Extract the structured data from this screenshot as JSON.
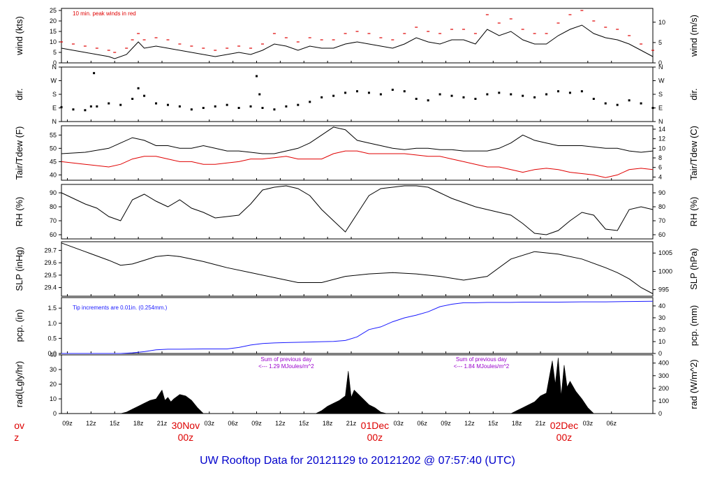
{
  "colors": {
    "black": "#000000",
    "red": "#e00000",
    "blue": "#1a1aff",
    "purple": "#9900cc",
    "title": "#0000cc",
    "day_label": "#dd0000"
  },
  "title": "UW Rooftop Data for 20121129  to  20121202 @ 07:57:40  (UTC)",
  "chart_data": [
    {
      "type": "line",
      "id": "wind",
      "ylabel_left": "wind (kts)",
      "ylabel_right": "wind (m/s)",
      "ylim": [
        0,
        26
      ],
      "yticks_left": [
        0,
        5,
        10,
        15,
        20,
        25
      ],
      "ylim_right": [
        0,
        13.4
      ],
      "yticks_right": [
        0,
        5,
        10
      ],
      "annotation": "10 min. peak winds in red",
      "series": [
        {
          "name": "",
          "color": "black",
          "x": [
            0,
            2,
            4,
            6,
            8,
            9,
            11,
            12,
            13,
            14,
            16,
            18,
            20,
            22,
            24,
            26,
            28,
            30,
            32,
            34,
            36,
            38,
            40,
            42,
            44,
            46,
            48,
            50,
            52,
            54,
            56,
            58,
            60,
            62,
            64,
            66,
            68,
            70,
            72,
            74,
            76,
            78,
            80,
            82,
            84,
            86,
            88,
            90,
            92,
            94,
            96,
            98,
            100
          ],
          "values": [
            7,
            6,
            5,
            4,
            3,
            2,
            4,
            7,
            10,
            7,
            8,
            7,
            6,
            5,
            4,
            3,
            4,
            5,
            4,
            6,
            9,
            8,
            6,
            8,
            7,
            7,
            9,
            10,
            9,
            8,
            7,
            9,
            12,
            10,
            9,
            11,
            11,
            9,
            16,
            13,
            15,
            11,
            9,
            9,
            13,
            16,
            18,
            14,
            12,
            11,
            9,
            6,
            3
          ]
        },
        {
          "name": "",
          "color": "red",
          "marker": "dash",
          "x": [
            0,
            2,
            4,
            6,
            8,
            9,
            11,
            12,
            13,
            14,
            16,
            18,
            20,
            22,
            24,
            26,
            28,
            30,
            32,
            34,
            36,
            38,
            40,
            42,
            44,
            46,
            48,
            50,
            52,
            54,
            56,
            58,
            60,
            62,
            64,
            66,
            68,
            70,
            72,
            74,
            76,
            78,
            80,
            82,
            84,
            86,
            88,
            90,
            92,
            94,
            96,
            98,
            100
          ],
          "values": [
            10,
            9,
            8,
            7,
            6,
            5,
            7,
            11,
            14,
            11,
            12,
            11,
            9,
            8,
            7,
            6,
            7,
            8,
            7,
            9,
            14,
            12,
            10,
            12,
            11,
            11,
            14,
            15,
            14,
            12,
            11,
            14,
            17,
            15,
            14,
            16,
            16,
            14,
            23,
            19,
            21,
            16,
            14,
            14,
            19,
            23,
            25,
            20,
            17,
            16,
            13,
            9,
            6
          ]
        }
      ]
    },
    {
      "type": "scatter",
      "id": "dir",
      "ylabel_left": "dir.",
      "ylabel_right": "dir.",
      "ylim": [
        0,
        360
      ],
      "yticks": [
        {
          "v": 0,
          "label": "N"
        },
        {
          "v": 90,
          "label": "E"
        },
        {
          "v": 180,
          "label": "S"
        },
        {
          "v": 270,
          "label": "W"
        },
        {
          "v": 360,
          "label": "N"
        }
      ],
      "x": [
        0,
        2,
        4,
        5,
        5.5,
        6,
        8,
        10,
        12,
        13,
        14,
        16,
        18,
        20,
        22,
        24,
        26,
        28,
        30,
        32,
        33,
        33.5,
        34,
        36,
        38,
        40,
        42,
        44,
        46,
        48,
        50,
        52,
        54,
        56,
        58,
        60,
        62,
        64,
        66,
        68,
        70,
        72,
        74,
        76,
        78,
        80,
        82,
        84,
        86,
        88,
        90,
        92,
        94,
        96,
        98,
        100
      ],
      "values": [
        95,
        80,
        75,
        100,
        320,
        100,
        120,
        110,
        150,
        220,
        170,
        120,
        110,
        100,
        80,
        90,
        100,
        110,
        90,
        100,
        300,
        180,
        90,
        80,
        100,
        110,
        130,
        160,
        170,
        190,
        200,
        190,
        180,
        210,
        200,
        150,
        140,
        180,
        170,
        160,
        150,
        180,
        190,
        180,
        170,
        160,
        180,
        200,
        190,
        200,
        150,
        120,
        110,
        140,
        120,
        90
      ]
    },
    {
      "type": "line",
      "id": "temp",
      "ylabel_left": "Tair/Tdew (F)",
      "ylabel_right": "Tair/Tdew (C)",
      "ylim": [
        38,
        58.5
      ],
      "yticks_left": [
        40,
        45,
        50,
        55
      ],
      "ylim_right": [
        3.33,
        14.72
      ],
      "yticks_right": [
        4,
        6,
        8,
        10,
        12,
        14
      ],
      "series": [
        {
          "name": "",
          "color": "black",
          "x": [
            0,
            4,
            8,
            10,
            12,
            14,
            16,
            18,
            20,
            22,
            24,
            26,
            28,
            30,
            32,
            34,
            36,
            38,
            40,
            42,
            44,
            46,
            48,
            50,
            52,
            54,
            56,
            58,
            60,
            62,
            64,
            66,
            68,
            70,
            72,
            74,
            76,
            78,
            80,
            82,
            84,
            86,
            88,
            90,
            92,
            94,
            96,
            98,
            100
          ],
          "values": [
            48,
            48.5,
            50,
            52,
            54,
            53,
            51,
            51,
            50,
            50,
            51,
            50,
            49,
            49,
            48.5,
            48,
            48,
            49,
            50,
            52,
            55,
            58,
            57,
            53,
            52,
            51,
            50,
            49.5,
            50,
            50,
            49.5,
            49.5,
            49,
            49,
            49,
            50,
            52,
            55,
            53,
            52,
            51,
            51,
            51,
            50.5,
            50,
            50,
            49,
            48.5,
            49
          ]
        },
        {
          "name": "",
          "color": "red",
          "x": [
            0,
            4,
            8,
            10,
            12,
            14,
            16,
            18,
            20,
            22,
            24,
            26,
            28,
            30,
            32,
            34,
            36,
            38,
            40,
            42,
            44,
            46,
            48,
            50,
            52,
            54,
            56,
            58,
            60,
            62,
            64,
            66,
            68,
            70,
            72,
            74,
            76,
            78,
            80,
            82,
            84,
            86,
            88,
            90,
            92,
            94,
            96,
            98,
            100
          ],
          "values": [
            45,
            44,
            43,
            44,
            46,
            47,
            47,
            46,
            45,
            45,
            44,
            44,
            44.5,
            45,
            46,
            46,
            46.5,
            47,
            46,
            46,
            46,
            48,
            49,
            49,
            48,
            48,
            48,
            48,
            47.5,
            47,
            47,
            46,
            45,
            44,
            43,
            43,
            42,
            41,
            42,
            42.5,
            42,
            41,
            40.5,
            40,
            39,
            40,
            42,
            42.5,
            42
          ]
        }
      ]
    },
    {
      "type": "line",
      "id": "rh",
      "ylabel_left": "RH (%)",
      "ylabel_right": "RH (%)",
      "ylim": [
        57,
        96
      ],
      "yticks": [
        60,
        70,
        80,
        90
      ],
      "series": [
        {
          "name": "",
          "color": "black",
          "x": [
            0,
            2,
            4,
            6,
            8,
            10,
            12,
            14,
            16,
            18,
            20,
            22,
            24,
            26,
            28,
            30,
            32,
            34,
            36,
            38,
            40,
            42,
            44,
            46,
            48,
            50,
            52,
            54,
            56,
            58,
            60,
            62,
            64,
            66,
            68,
            70,
            72,
            74,
            76,
            78,
            80,
            82,
            84,
            86,
            88,
            90,
            92,
            94,
            96,
            98,
            100
          ],
          "values": [
            90,
            86,
            82,
            79,
            73,
            70,
            85,
            89,
            84,
            80,
            85,
            79,
            76,
            72,
            73,
            74,
            82,
            92,
            94,
            95,
            93,
            88,
            78,
            70,
            62,
            75,
            88,
            93,
            94,
            95,
            95,
            94,
            90,
            86,
            83,
            80,
            78,
            76,
            74,
            68,
            61,
            60,
            63,
            70,
            76,
            74,
            64,
            63,
            78,
            80,
            78
          ]
        }
      ]
    },
    {
      "type": "line",
      "id": "slp",
      "ylabel_left": "SLP (inHg)",
      "ylabel_right": "SLP (hPa)",
      "ylim": [
        29.33,
        29.77
      ],
      "yticks_left": [
        29.4,
        29.5,
        29.6,
        29.7
      ],
      "ylim_right": [
        993.2,
        1008.1
      ],
      "yticks_right": [
        995,
        1000,
        1005
      ],
      "series": [
        {
          "name": "",
          "color": "black",
          "x": [
            0,
            4,
            8,
            10,
            12,
            14,
            16,
            18,
            20,
            24,
            28,
            32,
            36,
            40,
            44,
            48,
            52,
            56,
            60,
            64,
            68,
            72,
            76,
            80,
            84,
            88,
            92,
            94,
            96,
            98,
            100
          ],
          "values": [
            29.76,
            29.69,
            29.62,
            29.58,
            29.59,
            29.62,
            29.65,
            29.66,
            29.65,
            29.61,
            29.56,
            29.52,
            29.48,
            29.44,
            29.44,
            29.49,
            29.51,
            29.52,
            29.51,
            29.49,
            29.46,
            29.49,
            29.63,
            29.69,
            29.67,
            29.63,
            29.56,
            29.52,
            29.47,
            29.4,
            29.35
          ]
        }
      ]
    },
    {
      "type": "line",
      "id": "pcp",
      "ylabel_left": "pcp. (in)",
      "ylabel_right": "pcp. (mm)",
      "ylim": [
        0,
        1.85
      ],
      "yticks_left": [
        0.0,
        0.5,
        1.0,
        1.5
      ],
      "ylim_right": [
        0,
        46.99
      ],
      "yticks_right": [
        0,
        10,
        20,
        30,
        40
      ],
      "annotation": "Tip increments are 0.01in. (0.254mm.)",
      "series": [
        {
          "name": "",
          "color": "blue",
          "x": [
            0,
            8,
            10,
            12,
            14,
            16,
            18,
            20,
            24,
            28,
            30,
            32,
            34,
            36,
            38,
            40,
            42,
            44,
            46,
            48,
            50,
            52,
            54,
            56,
            58,
            60,
            62,
            64,
            66,
            68,
            70,
            72,
            74,
            76,
            78,
            80,
            84,
            88,
            92,
            96,
            100
          ],
          "values": [
            0,
            0,
            0,
            0.02,
            0.06,
            0.12,
            0.14,
            0.14,
            0.15,
            0.15,
            0.2,
            0.28,
            0.33,
            0.35,
            0.36,
            0.37,
            0.38,
            0.39,
            0.4,
            0.43,
            0.55,
            0.79,
            0.88,
            1.05,
            1.18,
            1.27,
            1.38,
            1.55,
            1.63,
            1.68,
            1.68,
            1.69,
            1.69,
            1.69,
            1.7,
            1.7,
            1.7,
            1.71,
            1.71,
            1.72,
            1.73
          ]
        }
      ]
    },
    {
      "type": "area",
      "id": "rad",
      "ylabel_left": "rad(Lgly/hr)",
      "ylabel_right": "rad (W/m^2)",
      "ylim": [
        0,
        40
      ],
      "yticks_left": [
        0,
        10,
        20,
        30,
        40
      ],
      "ylim_right": [
        0,
        465
      ],
      "yticks_right": [
        0,
        100,
        200,
        300,
        400
      ],
      "annotations": [
        {
          "line1": "Sum of previous day",
          "line2": "<--- 1.29 MJoules/m^2",
          "x": 38
        },
        {
          "line1": "Sum of previous day",
          "line2": "<--- 1.84 MJoules/m^2",
          "x": 71
        }
      ],
      "series": [
        {
          "name": "",
          "color": "black",
          "x": [
            0,
            10,
            11,
            12,
            13,
            14,
            15,
            16,
            17,
            17.5,
            18,
            18.5,
            19,
            20,
            21,
            22,
            23,
            24,
            43,
            44,
            45,
            46,
            47,
            48,
            48.5,
            49,
            49.5,
            50,
            51,
            52,
            53,
            54,
            55,
            56,
            76,
            77,
            78,
            79,
            80,
            81,
            82,
            82.5,
            83,
            83.5,
            84,
            84.5,
            85,
            85.5,
            86,
            87,
            88,
            89,
            90,
            100
          ],
          "values": [
            0,
            0,
            1,
            3,
            5,
            7,
            9,
            10,
            16,
            9,
            11,
            8,
            10,
            13,
            12,
            9,
            4,
            0,
            0,
            2,
            5,
            7,
            9,
            12,
            29,
            11,
            16,
            14,
            10,
            6,
            4,
            1,
            0,
            0,
            0,
            2,
            4,
            6,
            8,
            12,
            14,
            25,
            36,
            20,
            38,
            12,
            33,
            18,
            22,
            15,
            10,
            4,
            0,
            0
          ]
        }
      ]
    }
  ],
  "x_axis": {
    "hour_ticks": [
      {
        "x": 1,
        "label": "09z"
      },
      {
        "x": 5,
        "label": "12z"
      },
      {
        "x": 9,
        "label": "15z"
      },
      {
        "x": 13,
        "label": "18z"
      },
      {
        "x": 17,
        "label": "21z"
      },
      {
        "x": 25,
        "label": "03z"
      },
      {
        "x": 29,
        "label": "06z"
      },
      {
        "x": 33,
        "label": "09z"
      },
      {
        "x": 37,
        "label": "12z"
      },
      {
        "x": 41,
        "label": "15z"
      },
      {
        "x": 45,
        "label": "18z"
      },
      {
        "x": 49,
        "label": "21z"
      },
      {
        "x": 57,
        "label": "03z"
      },
      {
        "x": 61,
        "label": "06z"
      },
      {
        "x": 65,
        "label": "09z"
      },
      {
        "x": 69,
        "label": "12z"
      },
      {
        "x": 73,
        "label": "15z"
      },
      {
        "x": 77,
        "label": "18z"
      },
      {
        "x": 81,
        "label": "21z"
      },
      {
        "x": 89,
        "label": "03z"
      },
      {
        "x": 93,
        "label": "06z"
      }
    ],
    "day_labels": [
      {
        "x": -8,
        "line1": "ov",
        "line2": "z"
      },
      {
        "x": 21,
        "line1": "30Nov",
        "line2": "00z"
      },
      {
        "x": 53,
        "line1": "01Dec",
        "line2": "00z"
      },
      {
        "x": 85,
        "line1": "02Dec",
        "line2": "00z"
      }
    ]
  }
}
